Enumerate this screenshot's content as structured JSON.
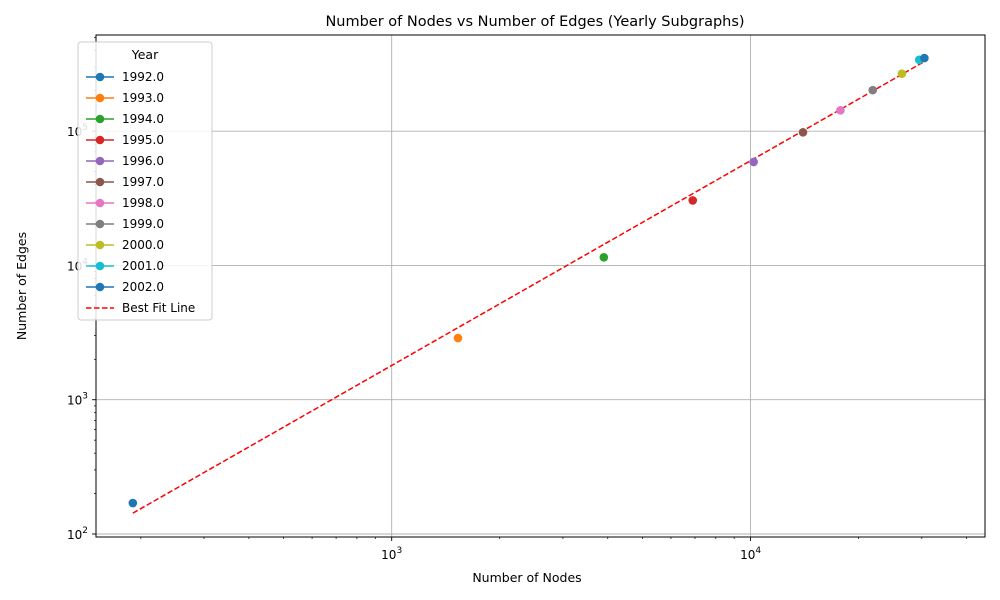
{
  "chart_data": {
    "type": "scatter",
    "title": "Number of Nodes vs Number of Edges (Yearly Subgraphs)",
    "xlabel": "Number of Nodes",
    "ylabel": "Number of Edges",
    "xscale": "log",
    "yscale": "log",
    "xlim": [
      150,
      45000
    ],
    "ylim": [
      95,
      520000
    ],
    "x_ticks": [
      {
        "base": "10",
        "exp": "3",
        "value": 1000
      },
      {
        "base": "10",
        "exp": "4",
        "value": 10000
      }
    ],
    "y_ticks": [
      {
        "base": "10",
        "exp": "2",
        "value": 100
      },
      {
        "base": "10",
        "exp": "3",
        "value": 1000
      },
      {
        "base": "10",
        "exp": "4",
        "value": 10000
      },
      {
        "base": "10",
        "exp": "5",
        "value": 100000
      }
    ],
    "grid": true,
    "legend": {
      "title": "Year",
      "placement": "top-left"
    },
    "series": [
      {
        "name": "1992.0",
        "color": "#1f77b4",
        "x": 190,
        "y": 170
      },
      {
        "name": "1993.0",
        "color": "#ff7f0e",
        "x": 1530,
        "y": 2880
      },
      {
        "name": "1994.0",
        "color": "#2ca02c",
        "x": 3900,
        "y": 11500
      },
      {
        "name": "1995.0",
        "color": "#d62728",
        "x": 6900,
        "y": 30500
      },
      {
        "name": "1996.0",
        "color": "#9467bd",
        "x": 10200,
        "y": 59000
      },
      {
        "name": "1997.0",
        "color": "#8c564b",
        "x": 14000,
        "y": 98000
      },
      {
        "name": "1998.0",
        "color": "#e377c2",
        "x": 17800,
        "y": 143000
      },
      {
        "name": "1999.0",
        "color": "#7f7f7f",
        "x": 21900,
        "y": 202000
      },
      {
        "name": "2000.0",
        "color": "#bcbd22",
        "x": 26400,
        "y": 268000
      },
      {
        "name": "2001.0",
        "color": "#17becf",
        "x": 29500,
        "y": 340000
      },
      {
        "name": "2002.0",
        "color": "#1f77b4",
        "x": 30500,
        "y": 350000
      }
    ],
    "fit_line": {
      "name": "Best Fit Line",
      "color": "#ff0000",
      "x": [
        190,
        30500
      ],
      "y": [
        143,
        330000
      ]
    }
  }
}
